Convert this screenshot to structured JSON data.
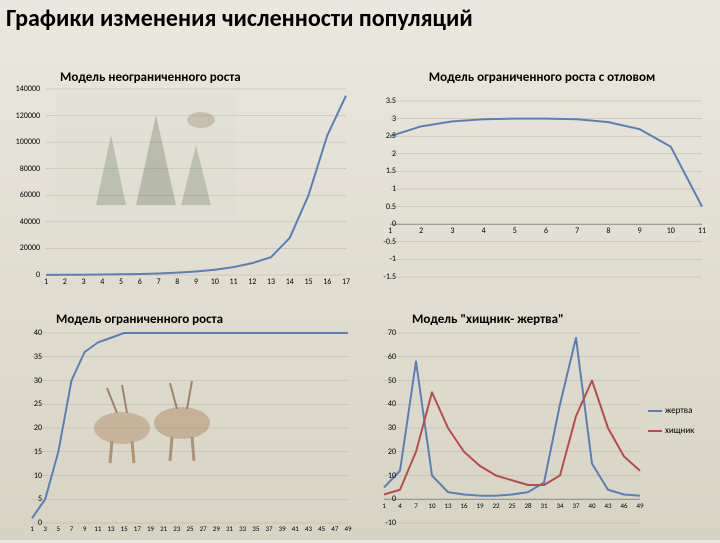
{
  "title": "Графики изменения численности популяций",
  "chart1": {
    "type": "line",
    "title": "Модель неограниченного роста",
    "title_fontsize": 13,
    "line_color": "#5a7fb8",
    "line_width": 2,
    "background": "transparent",
    "grid_color": "#b8b4a4",
    "x": [
      1,
      2,
      3,
      4,
      5,
      6,
      7,
      8,
      9,
      10,
      11,
      12,
      13,
      14,
      15,
      16,
      17
    ],
    "y": [
      100,
      150,
      230,
      350,
      520,
      780,
      1170,
      1760,
      2640,
      3960,
      5940,
      8910,
      13400,
      28000,
      60000,
      105000,
      135000
    ],
    "ylim": [
      0,
      140000
    ],
    "ytick_step": 20000,
    "yticks": [
      "0",
      "20000",
      "40000",
      "60000",
      "80000",
      "100000",
      "120000",
      "140000"
    ],
    "xlim": [
      1,
      17
    ]
  },
  "chart2": {
    "type": "line",
    "title": "Модель ограниченного роста с отловом",
    "title_fontsize": 13,
    "line_color": "#5a7fb8",
    "line_width": 2,
    "grid_color": "#b8b4a4",
    "x": [
      1,
      2,
      3,
      4,
      5,
      6,
      7,
      8,
      9,
      10,
      11
    ],
    "y": [
      2.5,
      2.78,
      2.92,
      2.98,
      3.0,
      3.0,
      2.98,
      2.9,
      2.7,
      2.2,
      0.5
    ],
    "ylim": [
      -1.5,
      3.5
    ],
    "ytick_step": 0.5,
    "yticks": [
      "-1.5",
      "-1",
      "-0.5",
      "0",
      "0.5",
      "1",
      "1.5",
      "2",
      "2.5",
      "3",
      "3.5"
    ],
    "xlim": [
      1,
      11
    ]
  },
  "chart3": {
    "type": "line",
    "title": "Модель ограниченного роста",
    "title_fontsize": 13,
    "line_color": "#5a7fb8",
    "line_width": 2,
    "grid_color": "#b8b4a4",
    "x": [
      1,
      3,
      5,
      7,
      9,
      11,
      13,
      15,
      17,
      19,
      21,
      23,
      25,
      27,
      29,
      31,
      33,
      35,
      37,
      39,
      41,
      43,
      45,
      47,
      49
    ],
    "y": [
      1,
      5,
      15,
      30,
      36,
      38,
      39,
      40,
      40,
      40,
      40,
      40,
      40,
      40,
      40,
      40,
      40,
      40,
      40,
      40,
      40,
      40,
      40,
      40,
      40
    ],
    "ylim": [
      0,
      40
    ],
    "ytick_step": 5,
    "yticks": [
      "0",
      "5",
      "10",
      "15",
      "20",
      "25",
      "30",
      "35",
      "40"
    ],
    "xlim": [
      1,
      49
    ],
    "xtick_labels": [
      "1",
      "3",
      "5",
      "7",
      "9",
      "11",
      "13",
      "15",
      "17",
      "19",
      "21",
      "23",
      "25",
      "27",
      "29",
      "31",
      "33",
      "35",
      "37",
      "39",
      "41",
      "43",
      "45",
      "47",
      "49"
    ]
  },
  "chart4": {
    "type": "line",
    "title": "Модель \"хищник- жертва\"",
    "title_fontsize": 13,
    "grid_color": "#b8b4a4",
    "series": [
      {
        "name": "жертва",
        "color": "#5a7fb8",
        "line_width": 2,
        "x": [
          1,
          4,
          7,
          10,
          13,
          16,
          19,
          22,
          25,
          28,
          31,
          34,
          37,
          40,
          43,
          46,
          49
        ],
        "y": [
          5,
          12,
          58,
          10,
          3,
          2,
          1.5,
          1.5,
          2,
          3,
          7,
          40,
          68,
          15,
          4,
          2,
          1.5
        ]
      },
      {
        "name": "хищник",
        "color": "#b84c4c",
        "line_width": 2,
        "x": [
          1,
          4,
          7,
          10,
          13,
          16,
          19,
          22,
          25,
          28,
          31,
          34,
          37,
          40,
          43,
          46,
          49
        ],
        "y": [
          2,
          4,
          20,
          45,
          30,
          20,
          14,
          10,
          8,
          6,
          6,
          10,
          35,
          50,
          30,
          18,
          12
        ]
      }
    ],
    "ylim": [
      -10,
      70
    ],
    "ytick_step": 10,
    "yticks": [
      "-10",
      "0",
      "10",
      "20",
      "30",
      "40",
      "50",
      "60",
      "70"
    ],
    "xlim": [
      1,
      49
    ],
    "xtick_labels": [
      "1",
      "4",
      "7",
      "10",
      "13",
      "16",
      "19",
      "22",
      "25",
      "28",
      "31",
      "34",
      "37",
      "40",
      "43",
      "46",
      "49"
    ],
    "legend": {
      "items": [
        {
          "label": "жертва",
          "color": "#5a7fb8"
        },
        {
          "label": "хищник",
          "color": "#b84c4c"
        }
      ]
    }
  }
}
